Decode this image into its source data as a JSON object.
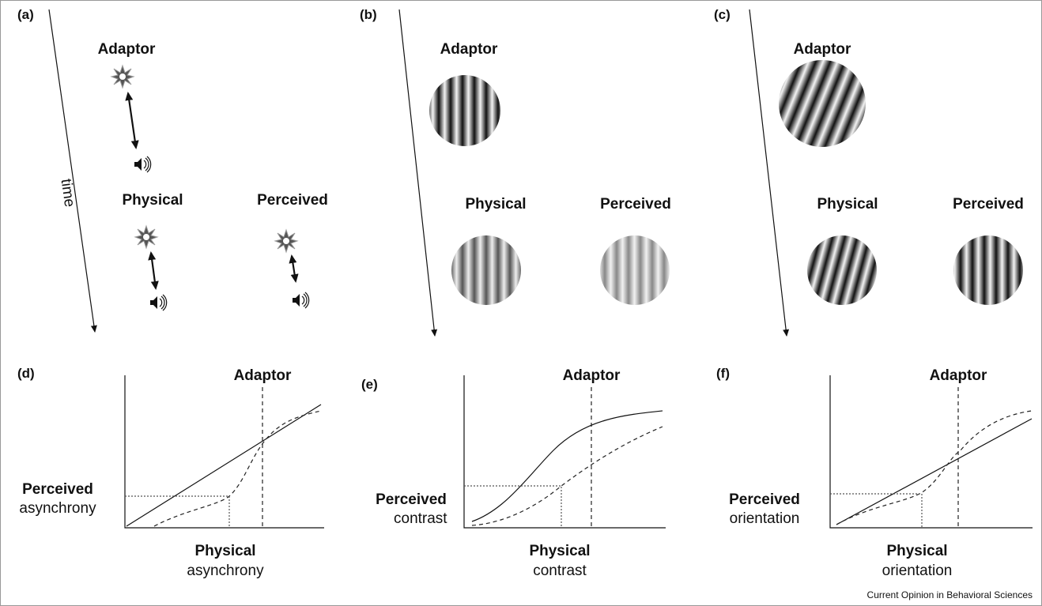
{
  "panels": [
    {
      "label": "(a)",
      "time": "time",
      "adaptor": "Adaptor",
      "physical": "Physical",
      "perceived": "Perceived"
    },
    {
      "label": "(b)",
      "adaptor": "Adaptor",
      "physical": "Physical",
      "perceived": "Perceived"
    },
    {
      "label": "(c)",
      "adaptor": "Adaptor",
      "physical": "Physical",
      "perceived": "Perceived"
    }
  ],
  "graphs": [
    {
      "label": "(d)",
      "adaptor": "Adaptor",
      "y_label_bold": "Perceived",
      "y_label": "asynchrony",
      "x_label_bold": "Physical",
      "x_label": "asynchrony"
    },
    {
      "label": "(e)",
      "adaptor": "Adaptor",
      "y_label_bold": "Perceived",
      "y_label": "contrast",
      "x_label_bold": "Physical",
      "x_label": "contrast"
    },
    {
      "label": "(f)",
      "adaptor": "Adaptor",
      "y_label_bold": "Perceived",
      "y_label": "orientation",
      "x_label_bold": "Physical",
      "x_label": "orientation"
    }
  ],
  "credit": "Current Opinion in Behavioral Sciences"
}
